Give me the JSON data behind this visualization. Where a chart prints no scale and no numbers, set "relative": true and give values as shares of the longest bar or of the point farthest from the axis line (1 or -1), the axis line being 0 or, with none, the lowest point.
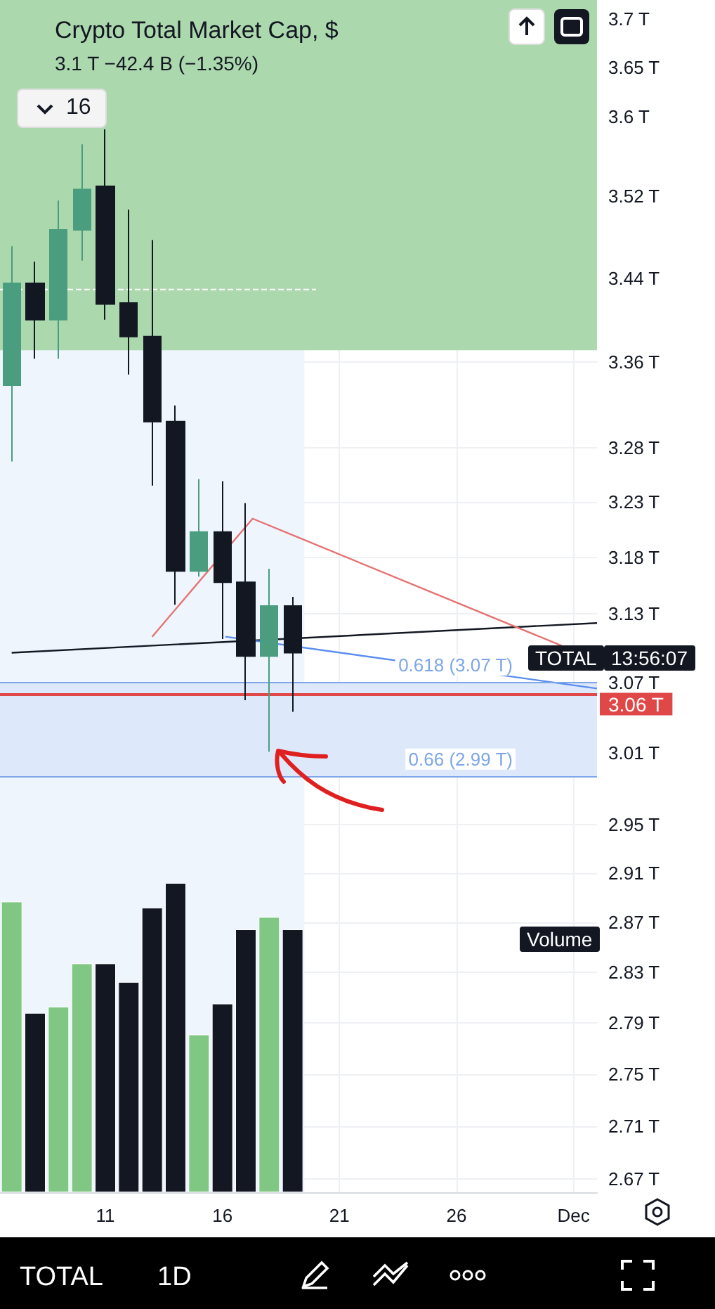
{
  "chart_data": [
    {
      "type": "candlestick",
      "title": "Crypto Total Market Cap, $",
      "subtitle": "3.1 T −42.4 B (−1.35%)",
      "x": [
        "--11-07",
        "--11-08",
        "--11-09",
        "--11-10",
        "--11-11",
        "--11-12",
        "--11-13",
        "--11-14",
        "--11-15",
        "--11-16",
        "--11-17",
        "--11-18",
        "--11-19"
      ],
      "ohlc": [
        [
          3.338,
          3.471,
          3.267,
          3.435
        ],
        [
          3.435,
          3.456,
          3.363,
          3.4
        ],
        [
          3.4,
          3.516,
          3.363,
          3.487
        ],
        [
          3.487,
          3.572,
          3.457,
          3.527
        ],
        [
          3.53,
          3.587,
          3.4,
          3.415
        ],
        [
          3.416,
          3.507,
          3.348,
          3.384
        ],
        [
          3.384,
          3.477,
          3.245,
          3.304
        ],
        [
          3.304,
          3.319,
          3.138,
          3.168
        ],
        [
          3.168,
          3.251,
          3.163,
          3.203
        ],
        [
          3.203,
          3.249,
          3.108,
          3.158
        ],
        [
          3.158,
          3.229,
          3.055,
          3.093
        ],
        [
          3.093,
          3.17,
          3.011,
          3.137
        ],
        [
          3.137,
          3.145,
          3.045,
          3.096
        ]
      ],
      "colors": [
        "#4a9d7f",
        "#131722",
        "#4a9d7f",
        "#4a9d7f",
        "#131722",
        "#131722",
        "#131722",
        "#131722",
        "#4a9d7f",
        "#131722",
        "#131722",
        "#4a9d7f",
        "#131722"
      ],
      "series": [
        {
          "type": "line",
          "x": [
            "--11-07",
            "--12-02"
          ],
          "values": [
            3.096,
            3.122
          ],
          "color": "#131722",
          "line_style": "solid"
        },
        {
          "type": "line",
          "x": [
            "--11-13",
            "--11-17T07:00",
            "--11-30T12:00"
          ],
          "values": [
            3.11,
            3.215,
            3.102
          ],
          "color": "#e57373",
          "line_style": "solid"
        },
        {
          "type": "line",
          "x": [
            "--11-16T03:00",
            "--12-02"
          ],
          "values": [
            3.11,
            3.065
          ],
          "color": "#5b8def",
          "line_style": "solid"
        },
        {
          "type": "line",
          "x": [
            "--11-06T12:00",
            "--11-20"
          ],
          "values": [
            3.429,
            3.429
          ],
          "color": "#ffffff",
          "line_style": "dashed"
        }
      ],
      "marker": "none",
      "log": true,
      "xlim": [
        "--11-06T12:00",
        "--12-02"
      ],
      "xticks": [
        {
          "value": "--11-11",
          "label": "11"
        },
        {
          "value": "--11-16",
          "label": "16"
        },
        {
          "value": "--11-21",
          "label": "21"
        },
        {
          "value": "--11-26",
          "label": "26"
        },
        {
          "value": "--12-01",
          "label": "Dec"
        }
      ],
      "ylim": [
        2.66,
        3.72
      ],
      "yticks": [
        {
          "value": 3.7,
          "label": "3.7 T"
        },
        {
          "value": 3.65,
          "label": "3.65 T"
        },
        {
          "value": 3.6,
          "label": "3.6 T"
        },
        {
          "value": 3.52,
          "label": "3.52 T"
        },
        {
          "value": 3.44,
          "label": "3.44 T"
        },
        {
          "value": 3.36,
          "label": "3.36 T"
        },
        {
          "value": 3.28,
          "label": "3.28 T"
        },
        {
          "value": 3.23,
          "label": "3.23 T"
        },
        {
          "value": 3.18,
          "label": "3.18 T"
        },
        {
          "value": 3.13,
          "label": "3.13 T"
        },
        {
          "value": 3.07,
          "label": "3.07 T"
        },
        {
          "value": 3.01,
          "label": "3.01 T"
        },
        {
          "value": 2.95,
          "label": "2.95 T"
        },
        {
          "value": 2.91,
          "label": "2.91 T"
        },
        {
          "value": 2.87,
          "label": "2.87 T"
        },
        {
          "value": 2.83,
          "label": "2.83 T"
        },
        {
          "value": 2.79,
          "label": "2.79 T"
        },
        {
          "value": 2.75,
          "label": "2.75 T"
        },
        {
          "value": 2.71,
          "label": "2.71 T"
        },
        {
          "value": 2.67,
          "label": "2.67 T"
        }
      ],
      "ref_lines": [
        {
          "axis": "y",
          "value": 3.06,
          "label": "3.06 T",
          "color": "#e04848"
        },
        {
          "axis": "y",
          "value": 3.07,
          "label": "0.618 (3.07 T)",
          "color": "#7ea6e8"
        },
        {
          "axis": "y",
          "value": 2.99,
          "label": "0.66 (2.99 T)",
          "color": "#7ea6e8"
        }
      ],
      "bands": [
        {
          "axis": "x",
          "from": "--11-06T12:00",
          "to": "--11-19T12:00",
          "color": "#eef5fd"
        },
        {
          "axis": "y",
          "from": 2.99,
          "to": 3.07,
          "color": "#dde9fb"
        },
        {
          "axis": "y",
          "from": 3.371,
          "to": 3.72,
          "color": "#acd8ad"
        }
      ],
      "grid": true,
      "tick_labels": "y",
      "annotations": [
        "16",
        "TOTAL",
        "13:56:07",
        "TOTAL",
        "1D"
      ]
    },
    {
      "type": "bar",
      "relative": true,
      "tick_labels": "x",
      "xlim": [
        "--11-06T12:00",
        "--12-02"
      ],
      "xticks": [
        {
          "value": "--11-11",
          "label": "11"
        },
        {
          "value": "--11-16",
          "label": "16"
        },
        {
          "value": "--11-21",
          "label": "21"
        },
        {
          "value": "--11-26",
          "label": "26"
        },
        {
          "value": "--12-01",
          "label": "Dec"
        }
      ],
      "x": [
        "--11-07",
        "--11-08",
        "--11-09",
        "--11-10",
        "--11-11",
        "--11-12",
        "--11-13",
        "--11-14",
        "--11-15",
        "--11-16",
        "--11-17",
        "--11-18",
        "--11-19"
      ],
      "values": [
        0.94,
        0.58,
        0.6,
        0.74,
        0.74,
        0.68,
        0.92,
        1,
        0.51,
        0.61,
        0.85,
        0.89,
        0.85
      ],
      "colors": [
        "#81c784",
        "#131722",
        "#81c784",
        "#81c784",
        "#131722",
        "#131722",
        "#131722",
        "#131722",
        "#81c784",
        "#131722",
        "#131722",
        "#81c784",
        "#131722"
      ],
      "annotations": [
        "Volume"
      ]
    }
  ]
}
